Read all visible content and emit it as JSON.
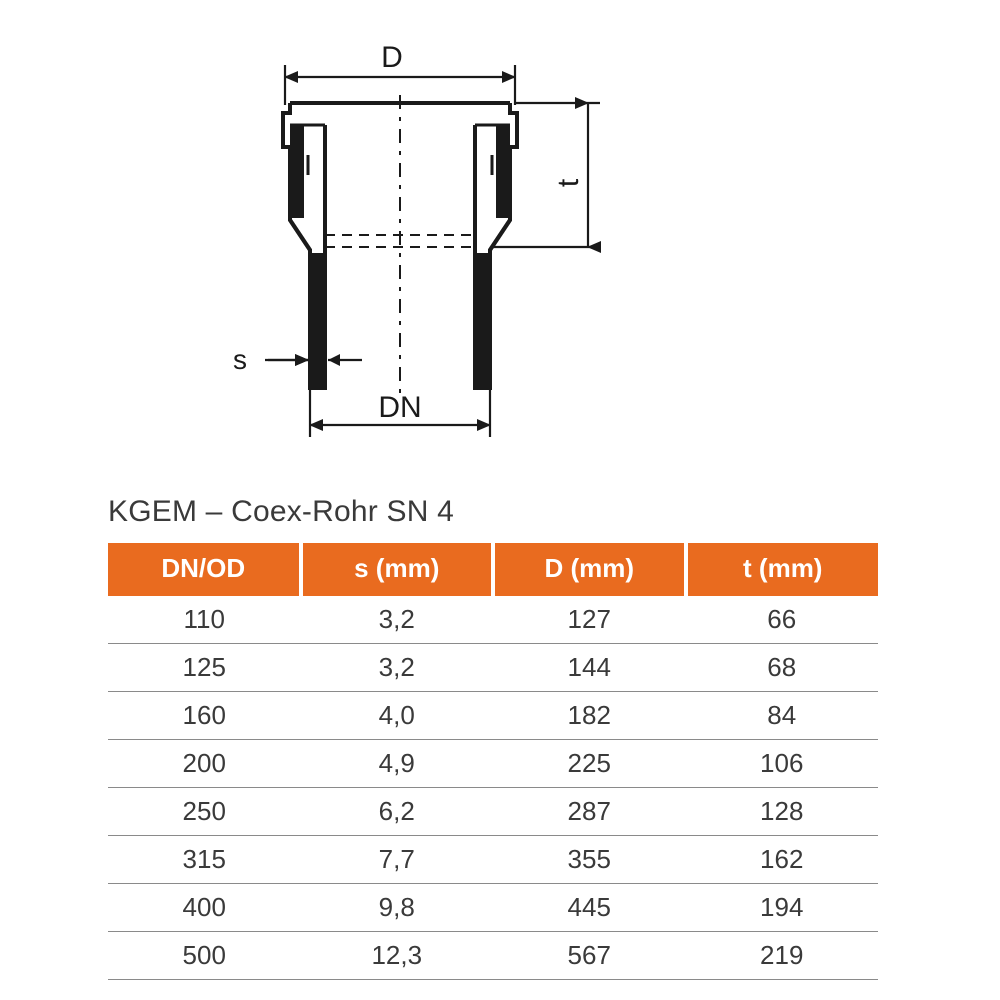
{
  "diagram": {
    "labels": {
      "D": "D",
      "t": "t",
      "s": "s",
      "DN": "DN"
    },
    "stroke_color": "#1a1a1a",
    "stroke_width_outline": 4,
    "stroke_width_dim": 2.2,
    "dash_pattern": "10 8 3 8",
    "background": "#ffffff"
  },
  "table": {
    "caption": "KGEM – Coex-Rohr SN 4",
    "header_bg": "#e96b1f",
    "header_fg": "#ffffff",
    "row_border": "#8a8a8a",
    "text_color": "#3a3a3a",
    "columns": [
      "DN/OD",
      "s (mm)",
      "D (mm)",
      "t (mm)"
    ],
    "rows": [
      [
        "110",
        "3,2",
        "127",
        "66"
      ],
      [
        "125",
        "3,2",
        "144",
        "68"
      ],
      [
        "160",
        "4,0",
        "182",
        "84"
      ],
      [
        "200",
        "4,9",
        "225",
        "106"
      ],
      [
        "250",
        "6,2",
        "287",
        "128"
      ],
      [
        "315",
        "7,7",
        "355",
        "162"
      ],
      [
        "400",
        "9,8",
        "445",
        "194"
      ],
      [
        "500",
        "12,3",
        "567",
        "219"
      ]
    ]
  }
}
